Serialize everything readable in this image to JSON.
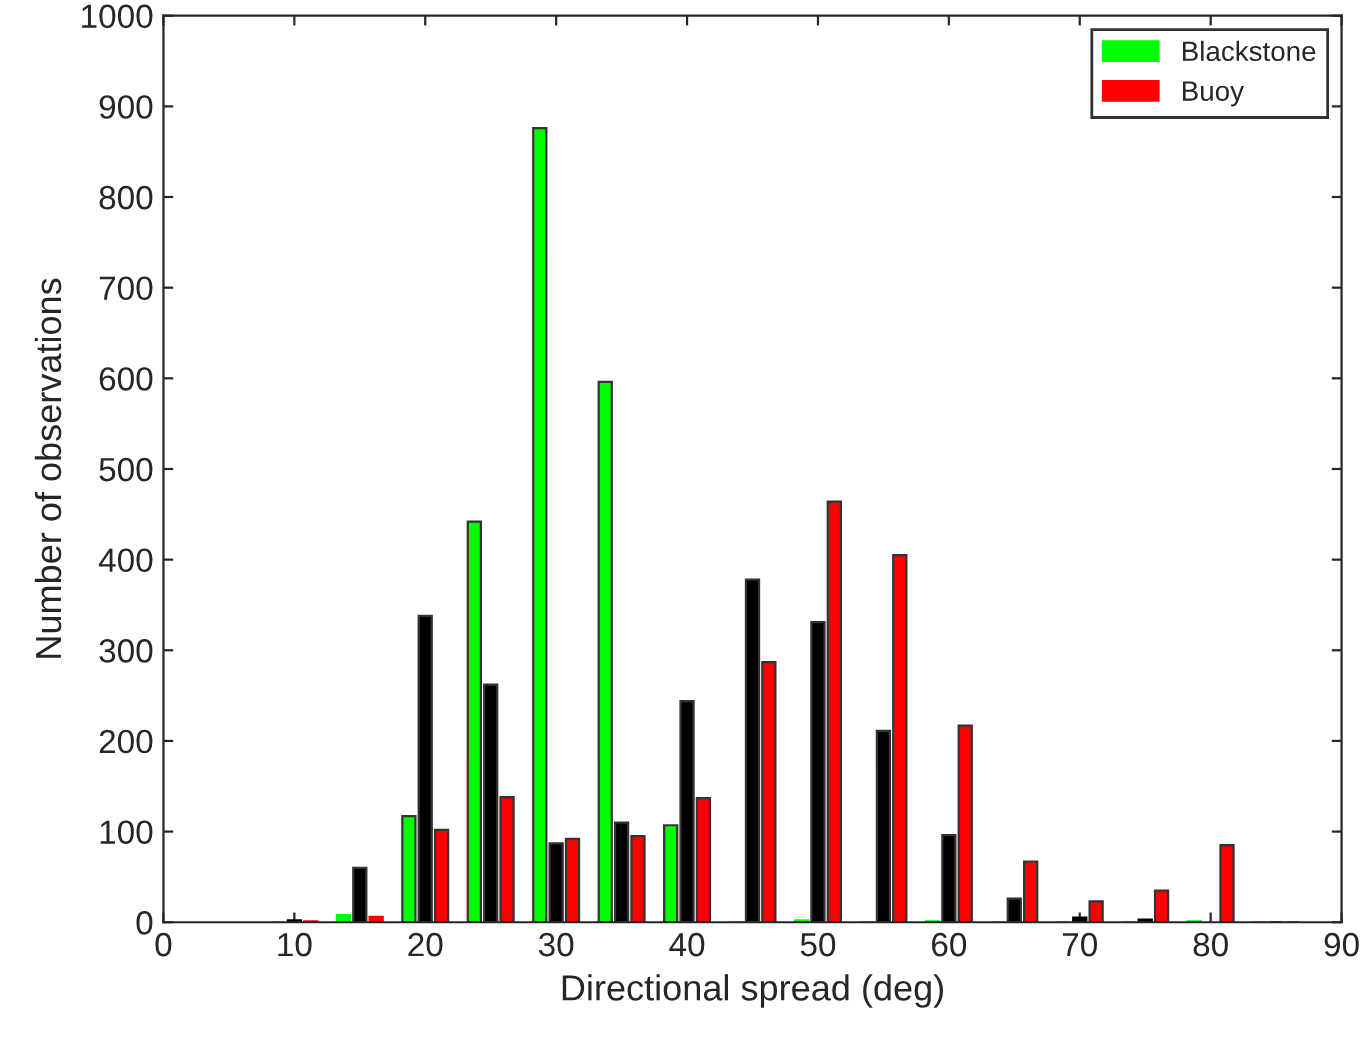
{
  "chart_data": {
    "type": "bar",
    "xlabel": "Directional spread (deg)",
    "ylabel": "Number of observations",
    "x": [
      10,
      15,
      20,
      25,
      30,
      35,
      40,
      45,
      50,
      55,
      60,
      65,
      70,
      75,
      80,
      85
    ],
    "series": [
      {
        "name": "Blackstone",
        "color": "#00ff00",
        "values": [
          0,
          8,
          117,
          442,
          876,
          596,
          107,
          0,
          2,
          0,
          1,
          0,
          0,
          0,
          1,
          0
        ]
      },
      {
        "color": "#000000",
        "values": [
          2,
          60,
          338,
          262,
          87,
          110,
          244,
          378,
          331,
          211,
          96,
          26,
          5,
          3,
          null,
          0
        ]
      },
      {
        "name": "Buoy",
        "color": "#ff0000",
        "values": [
          1,
          6,
          102,
          138,
          92,
          95,
          137,
          287,
          464,
          405,
          217,
          67,
          23,
          35,
          85,
          0
        ]
      }
    ],
    "xlim": [
      0,
      90
    ],
    "xticks": [
      0,
      10,
      20,
      30,
      40,
      50,
      60,
      70,
      80,
      90
    ],
    "ylim": [
      0,
      1000
    ],
    "yticks": [
      0,
      100,
      200,
      300,
      400,
      500,
      600,
      700,
      800,
      900,
      1000
    ],
    "grid": false,
    "legend": "top right"
  }
}
